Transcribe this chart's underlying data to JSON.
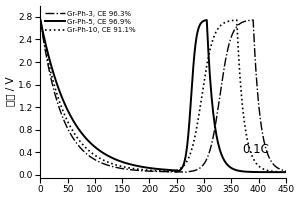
{
  "title": "",
  "ylabel": "电压 / V",
  "xlabel": "",
  "xlim": [
    0,
    450
  ],
  "ylim": [
    -0.05,
    3.0
  ],
  "yticks": [
    0.0,
    0.4,
    0.8,
    1.2,
    1.6,
    2.0,
    2.4,
    2.8
  ],
  "xticks": [
    0,
    50,
    100,
    150,
    200,
    250,
    300,
    350,
    400,
    450
  ],
  "annotation": "0.1C",
  "legend": [
    {
      "label": "Gr-Ph-3, CE 96.3%",
      "linestyle": "dashdot"
    },
    {
      "label": "Gr-Ph-5, CE 96.9%",
      "linestyle": "solid"
    },
    {
      "label": "Gr-Ph-10, CE 91.1%",
      "linestyle": "dotted"
    }
  ],
  "figsize": [
    3.0,
    2.0
  ],
  "dpi": 100
}
